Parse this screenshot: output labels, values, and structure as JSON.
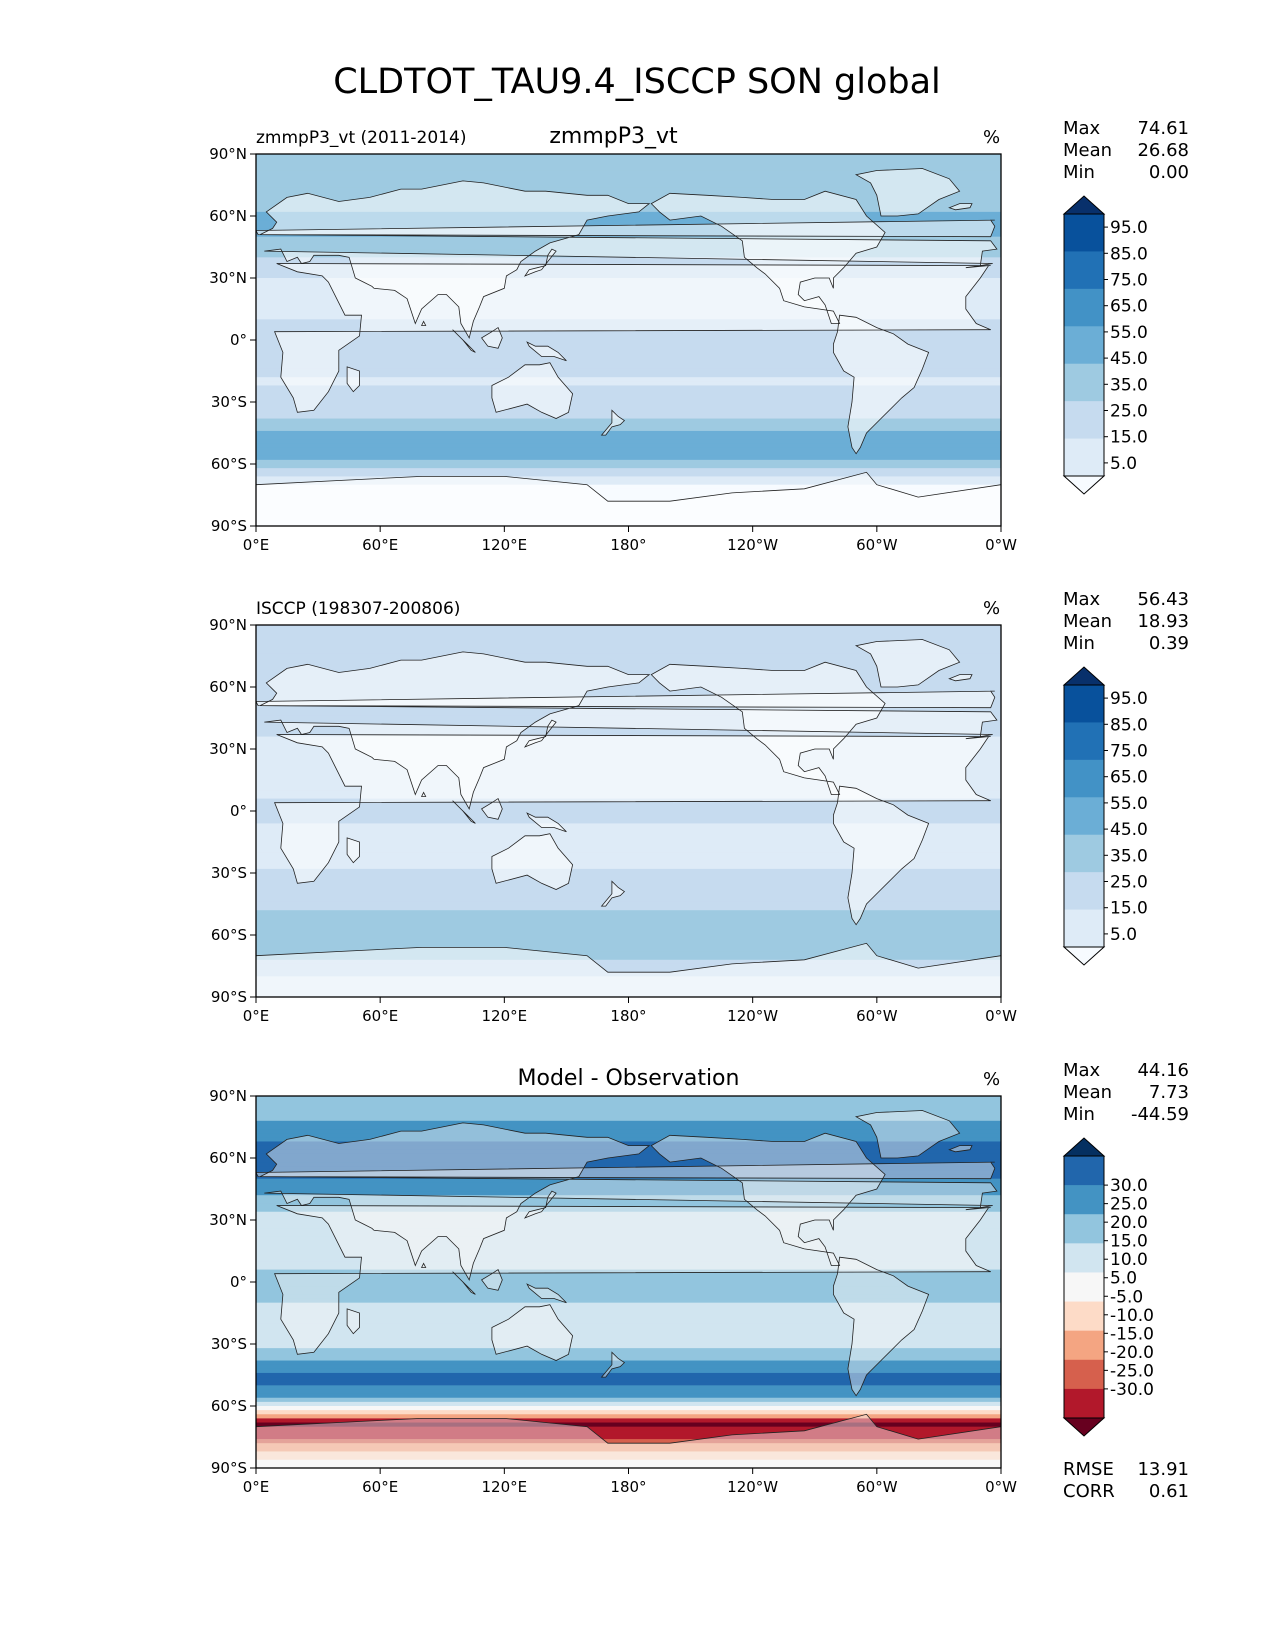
{
  "page": {
    "title": "CLDTOT_TAU9.4_ISCCP SON global"
  },
  "colors": {
    "blues": [
      "#f7fbff",
      "#deebf7",
      "#c6dbef",
      "#9ecae1",
      "#6baed6",
      "#4292c6",
      "#2171b5",
      "#08519c",
      "#08306b"
    ],
    "diverging": [
      "#67001f",
      "#b2182b",
      "#d6604d",
      "#f4a582",
      "#fddbc7",
      "#f7f7f7",
      "#d1e5f0",
      "#92c5de",
      "#4393c3",
      "#2166ac",
      "#053061"
    ],
    "land": "#ffffff",
    "coast": "#222222"
  },
  "chart_data": [
    {
      "id": "model",
      "type": "heatmap",
      "left_title": "zmmpP3_vt (2011-2014)",
      "center_title": "zmmpP3_vt",
      "units": "%",
      "stats": [
        {
          "label": "Max",
          "value": "74.61"
        },
        {
          "label": "Mean",
          "value": "26.68"
        },
        {
          "label": "Min",
          "value": "0.00"
        }
      ],
      "colorbar_ticks": [
        "95.0",
        "85.0",
        "75.0",
        "65.0",
        "55.0",
        "45.0",
        "35.0",
        "25.0",
        "15.0",
        "5.0"
      ],
      "colorbar_levels": [
        0,
        5,
        15,
        25,
        35,
        45,
        55,
        65,
        75,
        85,
        95,
        100
      ],
      "xticks": [
        "0°E",
        "60°E",
        "120°E",
        "180°",
        "120°W",
        "60°W",
        "0°W"
      ],
      "yticks": [
        "90°N",
        "60°N",
        "30°N",
        "0°",
        "30°S",
        "60°S",
        "90°S"
      ],
      "xlim": [
        0,
        360
      ],
      "ylim": [
        -90,
        90
      ],
      "zonal_profile": [
        {
          "lat": -90,
          "v": 3
        },
        {
          "lat": -75,
          "v": 3
        },
        {
          "lat": -68,
          "v": 6
        },
        {
          "lat": -60,
          "v": 32
        },
        {
          "lat": -52,
          "v": 42
        },
        {
          "lat": -45,
          "v": 36
        },
        {
          "lat": -35,
          "v": 22
        },
        {
          "lat": -20,
          "v": 14
        },
        {
          "lat": -5,
          "v": 22
        },
        {
          "lat": 5,
          "v": 18
        },
        {
          "lat": 15,
          "v": 12
        },
        {
          "lat": 30,
          "v": 14
        },
        {
          "lat": 45,
          "v": 32
        },
        {
          "lat": 55,
          "v": 38
        },
        {
          "lat": 65,
          "v": 34
        },
        {
          "lat": 75,
          "v": 30
        },
        {
          "lat": 85,
          "v": 32
        },
        {
          "lat": 90,
          "v": 30
        }
      ]
    },
    {
      "id": "obs",
      "type": "heatmap",
      "left_title": "ISCCP (198307-200806)",
      "center_title": "",
      "units": "%",
      "stats": [
        {
          "label": "Max",
          "value": "56.43"
        },
        {
          "label": "Mean",
          "value": "18.93"
        },
        {
          "label": "Min",
          "value": "0.39"
        }
      ],
      "colorbar_ticks": [
        "95.0",
        "85.0",
        "75.0",
        "65.0",
        "55.0",
        "45.0",
        "35.0",
        "25.0",
        "15.0",
        "5.0"
      ],
      "colorbar_levels": [
        0,
        5,
        15,
        25,
        35,
        45,
        55,
        65,
        75,
        85,
        95,
        100
      ],
      "xticks": [
        "0°E",
        "60°E",
        "120°E",
        "180°",
        "120°W",
        "60°W",
        "0°W"
      ],
      "yticks": [
        "90°N",
        "60°N",
        "30°N",
        "0°",
        "30°S",
        "60°S",
        "90°S"
      ],
      "xlim": [
        0,
        360
      ],
      "ylim": [
        -90,
        90
      ],
      "zonal_profile": [
        {
          "lat": -90,
          "v": 10
        },
        {
          "lat": -80,
          "v": 14
        },
        {
          "lat": -70,
          "v": 28
        },
        {
          "lat": -60,
          "v": 30
        },
        {
          "lat": -50,
          "v": 27
        },
        {
          "lat": -40,
          "v": 20
        },
        {
          "lat": -25,
          "v": 14
        },
        {
          "lat": -10,
          "v": 14
        },
        {
          "lat": 0,
          "v": 16
        },
        {
          "lat": 10,
          "v": 14
        },
        {
          "lat": 25,
          "v": 11
        },
        {
          "lat": 40,
          "v": 16
        },
        {
          "lat": 50,
          "v": 22
        },
        {
          "lat": 60,
          "v": 20
        },
        {
          "lat": 75,
          "v": 20
        },
        {
          "lat": 90,
          "v": 22
        }
      ]
    },
    {
      "id": "diff",
      "type": "heatmap",
      "left_title": "",
      "center_title": "Model - Observation",
      "units": "%",
      "stats": [
        {
          "label": "Max",
          "value": "44.16"
        },
        {
          "label": "Mean",
          "value": "7.73"
        },
        {
          "label": "Min",
          "value": "-44.59"
        }
      ],
      "colorbar_ticks": [
        "30.0",
        "25.0",
        "20.0",
        "15.0",
        "10.0",
        "5.0",
        "-5.0",
        "-10.0",
        "-15.0",
        "-20.0",
        "-25.0",
        "-30.0"
      ],
      "colorbar_levels": [
        -35,
        -30,
        -25,
        -20,
        -15,
        -10,
        -5,
        5,
        10,
        15,
        20,
        25,
        30,
        35
      ],
      "xticks": [
        "0°E",
        "60°E",
        "120°E",
        "180°",
        "120°W",
        "60°W",
        "0°W"
      ],
      "yticks": [
        "90°N",
        "60°N",
        "30°N",
        "0°",
        "30°S",
        "60°S",
        "90°S"
      ],
      "xlim": [
        0,
        360
      ],
      "ylim": [
        -90,
        90
      ],
      "zonal_profile": [
        {
          "lat": -90,
          "v": -5
        },
        {
          "lat": -82,
          "v": -14
        },
        {
          "lat": -75,
          "v": -26
        },
        {
          "lat": -68,
          "v": -32
        },
        {
          "lat": -62,
          "v": -8
        },
        {
          "lat": -55,
          "v": 12
        },
        {
          "lat": -48,
          "v": 17
        },
        {
          "lat": -40,
          "v": 12
        },
        {
          "lat": -30,
          "v": 3
        },
        {
          "lat": -15,
          "v": 2
        },
        {
          "lat": -5,
          "v": 8
        },
        {
          "lat": 5,
          "v": 5
        },
        {
          "lat": 15,
          "v": 2
        },
        {
          "lat": 30,
          "v": 3
        },
        {
          "lat": 45,
          "v": 12
        },
        {
          "lat": 55,
          "v": 18
        },
        {
          "lat": 65,
          "v": 17
        },
        {
          "lat": 75,
          "v": 11
        },
        {
          "lat": 85,
          "v": 8
        },
        {
          "lat": 90,
          "v": 6
        }
      ],
      "metrics": [
        {
          "label": "RMSE",
          "value": "13.91"
        },
        {
          "label": "CORR",
          "value": "0.61"
        }
      ]
    }
  ]
}
